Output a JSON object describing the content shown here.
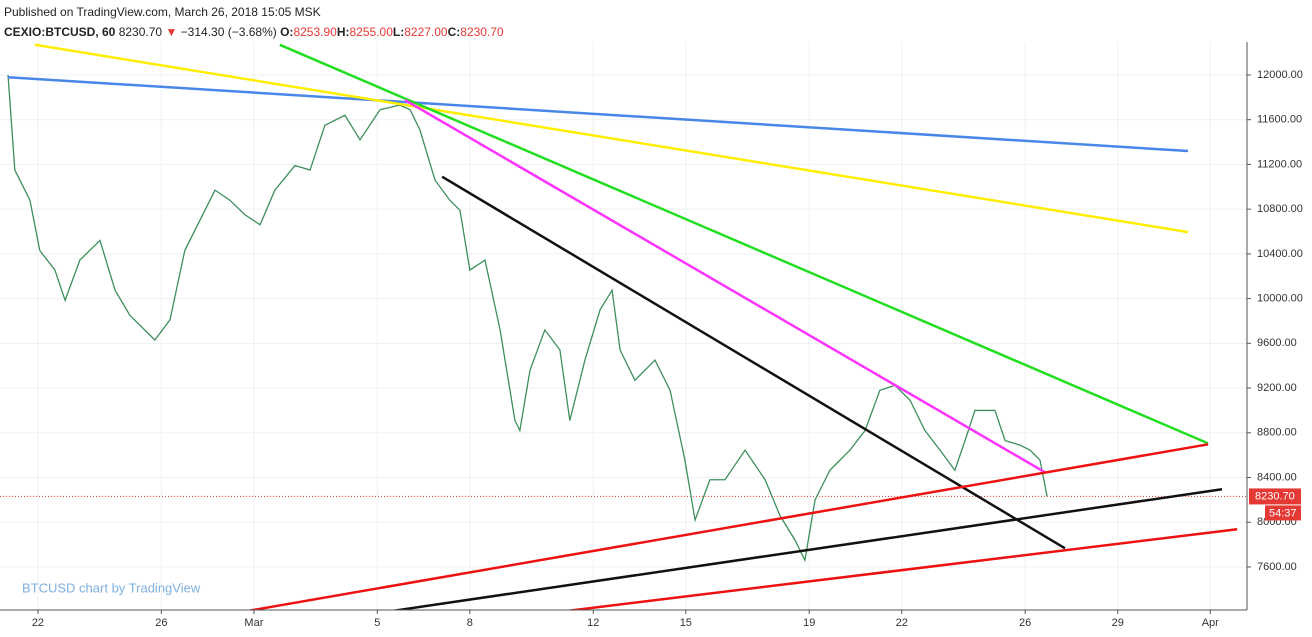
{
  "header": {
    "published": "Published on TradingView.com, March 26, 2018 15:05 MSK",
    "symbol": "CEXIO:BTCUSD, 60",
    "last": "8230.70",
    "arrow": "▼",
    "change": "−314.30 (−3.68%)",
    "ohlc": [
      {
        "label": "O:",
        "value": "8253.90"
      },
      {
        "label": "H:",
        "value": "8255.00"
      },
      {
        "label": "L:",
        "value": "8227.00"
      },
      {
        "label": "C:",
        "value": "8230.70"
      }
    ]
  },
  "chart_data": {
    "type": "line",
    "watermark": "BTCUSD chart by TradingView",
    "xlim": [
      -1.23,
      39.19
    ],
    "ylim": [
      7215,
      12295
    ],
    "xticks": [
      {
        "value": 0,
        "label": "22"
      },
      {
        "value": 4,
        "label": "26"
      },
      {
        "value": 7,
        "label": "Mar"
      },
      {
        "value": 11,
        "label": "5"
      },
      {
        "value": 14,
        "label": "8"
      },
      {
        "value": 18,
        "label": "12"
      },
      {
        "value": 21,
        "label": "15"
      },
      {
        "value": 25,
        "label": "19"
      },
      {
        "value": 28,
        "label": "22"
      },
      {
        "value": 32,
        "label": "26"
      },
      {
        "value": 35,
        "label": "29"
      },
      {
        "value": 38,
        "label": "Apr"
      }
    ],
    "yticks": [
      {
        "value": 7600,
        "label": "7600.00"
      },
      {
        "value": 8000,
        "label": "8000.00"
      },
      {
        "value": 8400,
        "label": "8400.00"
      },
      {
        "value": 8800,
        "label": "8800.00"
      },
      {
        "value": 9200,
        "label": "9200.00"
      },
      {
        "value": 9600,
        "label": "9600.00"
      },
      {
        "value": 10000,
        "label": "10000.00"
      },
      {
        "value": 10400,
        "label": "10400.00"
      },
      {
        "value": 10800,
        "label": "10800.00"
      },
      {
        "value": 11200,
        "label": "11200.00"
      },
      {
        "value": 11600,
        "label": "11600.00"
      },
      {
        "value": 12000,
        "label": "12000.00"
      }
    ],
    "grid": true,
    "last_price": {
      "value": 8230.7,
      "label": "8230.70",
      "color": "#e53935"
    },
    "countdown": "54:37",
    "price": {
      "color": "#3d8f5c",
      "x": [
        -0.97,
        -0.75,
        -0.26,
        0.06,
        0.55,
        0.88,
        1.36,
        2.01,
        2.5,
        2.98,
        3.79,
        4.28,
        4.76,
        5.25,
        5.74,
        6.22,
        6.71,
        7.2,
        7.68,
        8.33,
        8.82,
        9.3,
        9.95,
        10.44,
        11.09,
        11.73,
        12.06,
        12.38,
        12.87,
        13.35,
        13.68,
        14.0,
        14.49,
        14.98,
        15.46,
        15.62,
        15.95,
        16.43,
        16.92,
        17.24,
        17.73,
        18.22,
        18.61,
        18.87,
        19.35,
        20.0,
        20.49,
        20.97,
        21.3,
        21.78,
        22.27,
        22.92,
        23.57,
        24.05,
        24.54,
        24.86,
        25.19,
        25.67,
        26.32,
        26.81,
        27.29,
        27.78,
        28.27,
        28.75,
        29.24,
        29.72,
        30.05,
        30.37,
        31.02,
        31.35,
        31.83,
        32.16,
        32.48,
        32.71
      ],
      "values": [
        12000,
        11150,
        10880,
        10430,
        10255,
        9985,
        10345,
        10520,
        10075,
        9850,
        9630,
        9810,
        10430,
        10700,
        10970,
        10880,
        10750,
        10660,
        10970,
        11190,
        11150,
        11550,
        11640,
        11420,
        11690,
        11730,
        11690,
        11510,
        11060,
        10880,
        10790,
        10255,
        10345,
        9720,
        8910,
        8820,
        9360,
        9720,
        9540,
        8910,
        9450,
        9900,
        10075,
        9540,
        9270,
        9450,
        9180,
        8555,
        8020,
        8380,
        8380,
        8645,
        8380,
        8060,
        7840,
        7660,
        8200,
        8465,
        8645,
        8820,
        9180,
        9225,
        9090,
        8820,
        8645,
        8465,
        8730,
        9000,
        9000,
        8730,
        8690,
        8645,
        8555,
        8230.7
      ]
    },
    "trend_lines": [
      {
        "color": "#4a86e8",
        "x": [
          -0.97,
          37.28
        ],
        "values": [
          11980,
          11320
        ]
      },
      {
        "color": "#ffee00",
        "x": [
          -0.1,
          37.28
        ],
        "values": [
          12270,
          10595
        ]
      },
      {
        "color": "#22dd22",
        "x": [
          7.84,
          37.93
        ],
        "values": [
          12270,
          8705
        ]
      },
      {
        "color": "#ff33ff",
        "x": [
          11.9,
          32.64
        ],
        "values": [
          11775,
          8447
        ]
      },
      {
        "color": "#111111",
        "x": [
          13.1,
          33.29
        ],
        "values": [
          11090,
          7767
        ]
      },
      {
        "color": "#ee1111",
        "x": [
          6.87,
          37.93
        ],
        "values": [
          7210,
          8697
        ]
      },
      {
        "color": "#111111",
        "x": [
          11.57,
          38.38
        ],
        "values": [
          7210,
          8295
        ]
      },
      {
        "color": "#ee1111",
        "x": [
          17.24,
          38.87
        ],
        "values": [
          7210,
          7937
        ]
      }
    ]
  }
}
